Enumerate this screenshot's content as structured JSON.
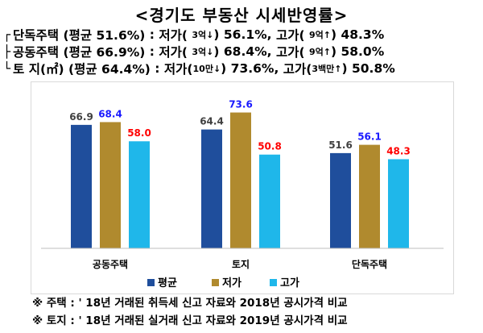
{
  "title": "<경기도 부동산 시세반영률>",
  "summary": [
    {
      "bracket": "┌",
      "category": "단독주택",
      "avg": "(평균 51.6%)",
      "sep": ":",
      "low_label": "저가(",
      "low_cond": "3억↓",
      "low_close": ")",
      "low_value": "56.1%,",
      "high_label": "고가(",
      "high_cond": "9억↑",
      "high_close": ")",
      "high_value": "48.3%"
    },
    {
      "bracket": "├",
      "category": "공동주택",
      "avg": "(평균 66.9%)",
      "sep": ":",
      "low_label": "저가(",
      "low_cond": "3억↓",
      "low_close": ")",
      "low_value": "68.4%,",
      "high_label": "고가(",
      "high_cond": "9억↑",
      "high_close": ")",
      "high_value": "58.0%"
    },
    {
      "bracket": "└",
      "category": "토 지(㎡)",
      "avg": "(평균 64.4%)",
      "sep": ":",
      "low_label": "저가(",
      "low_cond": "10만↓",
      "low_close": ")",
      "low_value": "73.6%,",
      "high_label": "고가(",
      "high_cond": "3백만↑",
      "high_close": ")",
      "high_value": "50.8%"
    }
  ],
  "notes": [
    "※ 주택 : ' 18년 거래된 취득세 신고 자료와 2018년 공시가격 비교",
    "※ 토지 : ' 18년 거래된 실거래 신고 자료와 2019년 공시가격 비교"
  ],
  "colors": {
    "avg": "#1f4e9c",
    "low": "#b08a2e",
    "high": "#1fb7ea",
    "label_avg": "#404040",
    "label_low": "#1a1aff",
    "label_high": "#ff0000"
  },
  "chart_data": {
    "type": "bar",
    "categories": [
      "공동주택",
      "토지",
      "단독주택"
    ],
    "series": [
      {
        "name": "평균",
        "values": [
          66.9,
          64.4,
          51.6
        ]
      },
      {
        "name": "저가",
        "values": [
          68.4,
          73.6,
          56.1
        ]
      },
      {
        "name": "고가",
        "values": [
          58.0,
          50.8,
          48.3
        ]
      }
    ],
    "ylim": [
      0,
      90
    ],
    "grid": false,
    "legend_position": "bottom"
  }
}
